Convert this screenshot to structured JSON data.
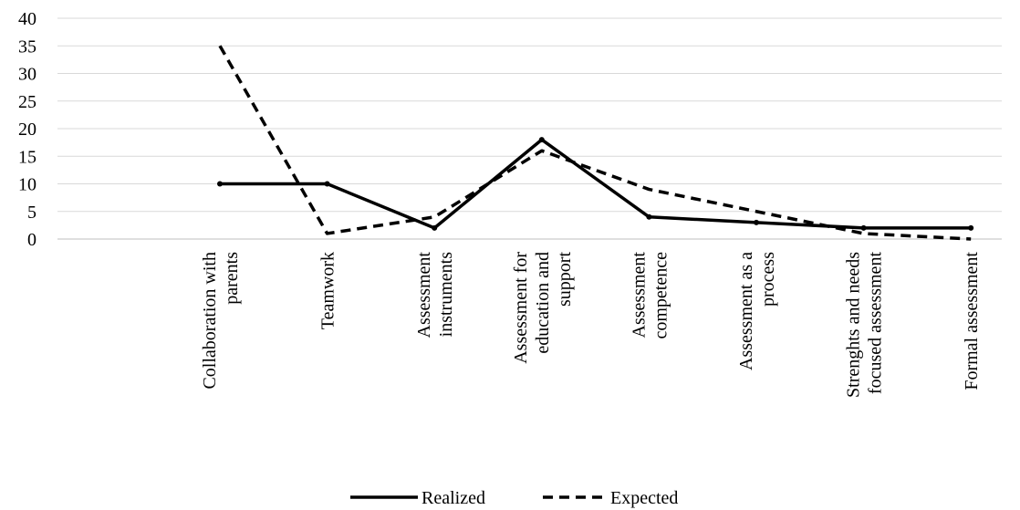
{
  "chart_data": {
    "type": "line",
    "title": "",
    "xlabel": "",
    "ylabel": "",
    "ylim": [
      0,
      40
    ],
    "yticks": [
      0,
      5,
      10,
      15,
      20,
      25,
      30,
      35,
      40
    ],
    "grid": true,
    "legend": "bottom",
    "categories": [
      [
        "Collaboration with",
        "parents"
      ],
      [
        "Teamwork"
      ],
      [
        "Assessment",
        "instruments"
      ],
      [
        "Assessment for",
        "education and",
        "support"
      ],
      [
        "Assessment",
        "competence"
      ],
      [
        "Assessment as a",
        "process"
      ],
      [
        "Strenghts and needs",
        "focused assessment"
      ],
      [
        "Formal assessment"
      ]
    ],
    "series": [
      {
        "name": "Realized",
        "style": "solid",
        "color": "#000000",
        "values": [
          10,
          10,
          2,
          18,
          4,
          3,
          2,
          2
        ]
      },
      {
        "name": "Expected",
        "style": "dashed",
        "color": "#000000",
        "values": [
          35,
          1,
          4,
          16,
          9,
          5,
          1,
          0
        ]
      }
    ]
  }
}
